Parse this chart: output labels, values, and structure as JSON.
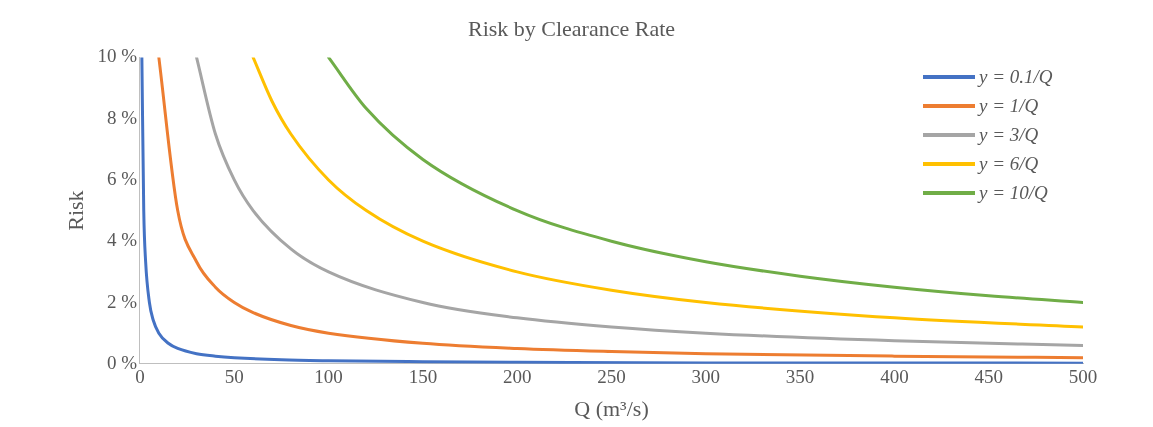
{
  "chart_data": {
    "type": "line",
    "title": "Risk by Clearance Rate",
    "xlabel": "Q (m³/s)",
    "ylabel": "Risk",
    "xlim": [
      0,
      500
    ],
    "xticks": [
      0,
      50,
      100,
      150,
      200,
      250,
      300,
      350,
      400,
      450,
      500
    ],
    "ylim": [
      0,
      10
    ],
    "yticks": [
      {
        "value": 0,
        "label": "0 %"
      },
      {
        "value": 2,
        "label": "2 %"
      },
      {
        "value": 4,
        "label": "4 %"
      },
      {
        "value": 6,
        "label": "6 %"
      },
      {
        "value": 8,
        "label": "8 %"
      },
      {
        "value": 10,
        "label": "10 %"
      }
    ],
    "grid": false,
    "legend": "top right",
    "marker": "none",
    "line_style": "solid",
    "series": [
      {
        "name": "y = 0.1/Q",
        "color": "#4472c4",
        "x": [
          1,
          2,
          3,
          5,
          7,
          10,
          15,
          20,
          30,
          40,
          50,
          75,
          100,
          150,
          200,
          300,
          400,
          500
        ],
        "values": [
          10,
          5,
          3.33,
          2,
          1.43,
          1,
          0.67,
          0.5,
          0.33,
          0.25,
          0.2,
          0.13,
          0.1,
          0.07,
          0.05,
          0.03,
          0.03,
          0.02
        ]
      },
      {
        "name": "y = 1/Q",
        "color": "#ed7d31",
        "x": [
          10,
          20,
          30,
          40,
          50,
          60,
          80,
          100,
          150,
          200,
          250,
          300,
          400,
          500
        ],
        "values": [
          10,
          5,
          3.33,
          2.5,
          2,
          1.67,
          1.25,
          1,
          0.67,
          0.5,
          0.4,
          0.33,
          0.25,
          0.2
        ]
      },
      {
        "name": "y = 3/Q",
        "color": "#a5a5a5",
        "x": [
          30,
          40,
          50,
          60,
          80,
          100,
          150,
          200,
          250,
          300,
          400,
          500
        ],
        "values": [
          10,
          7.5,
          6,
          5,
          3.75,
          3,
          2,
          1.5,
          1.2,
          1,
          0.75,
          0.6
        ]
      },
      {
        "name": "y = 6/Q",
        "color": "#ffc000",
        "x": [
          60,
          70,
          80,
          100,
          120,
          150,
          200,
          250,
          300,
          400,
          500
        ],
        "values": [
          10,
          8.57,
          7.5,
          6,
          5,
          4,
          3,
          2.4,
          2,
          1.5,
          1.2
        ]
      },
      {
        "name": "y = 10/Q",
        "color": "#70ad47",
        "x": [
          100,
          120,
          150,
          200,
          250,
          300,
          350,
          400,
          450,
          500
        ],
        "values": [
          10,
          8.33,
          6.67,
          5,
          4,
          3.33,
          2.86,
          2.5,
          2.22,
          2
        ]
      }
    ]
  }
}
